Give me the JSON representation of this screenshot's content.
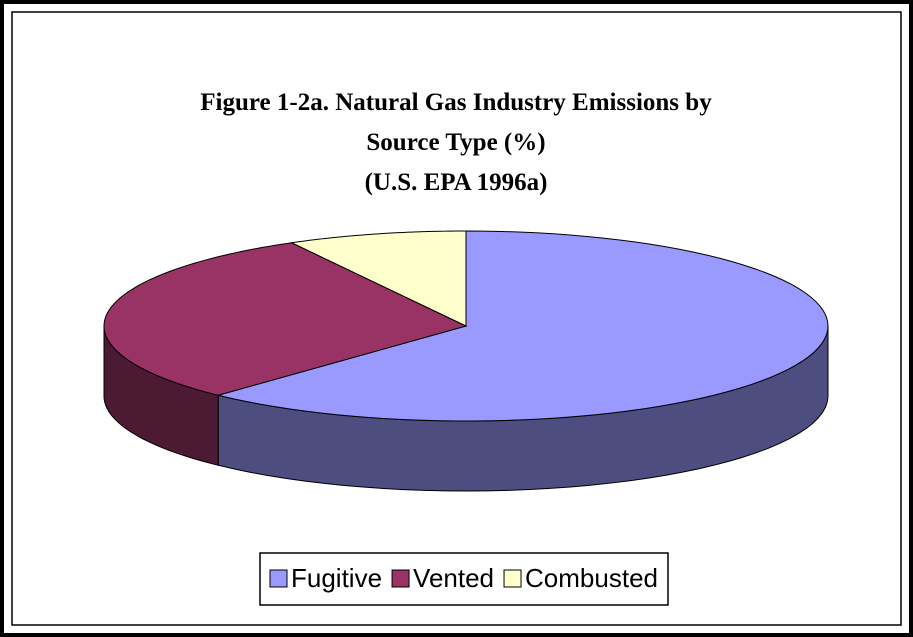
{
  "chart_data": {
    "type": "pie3d",
    "title": [
      "Figure 1-2a.  Natural Gas Industry Emissions by",
      "Source Type (%)"
    ],
    "subtitle": "(U.S. EPA 1996a)",
    "categories": [
      "Fugitive",
      "Vented",
      "Combusted"
    ],
    "values": [
      62,
      30,
      8
    ],
    "colors": [
      "#9999ff",
      "#993366",
      "#ffffcc"
    ],
    "legend": "bottom"
  }
}
